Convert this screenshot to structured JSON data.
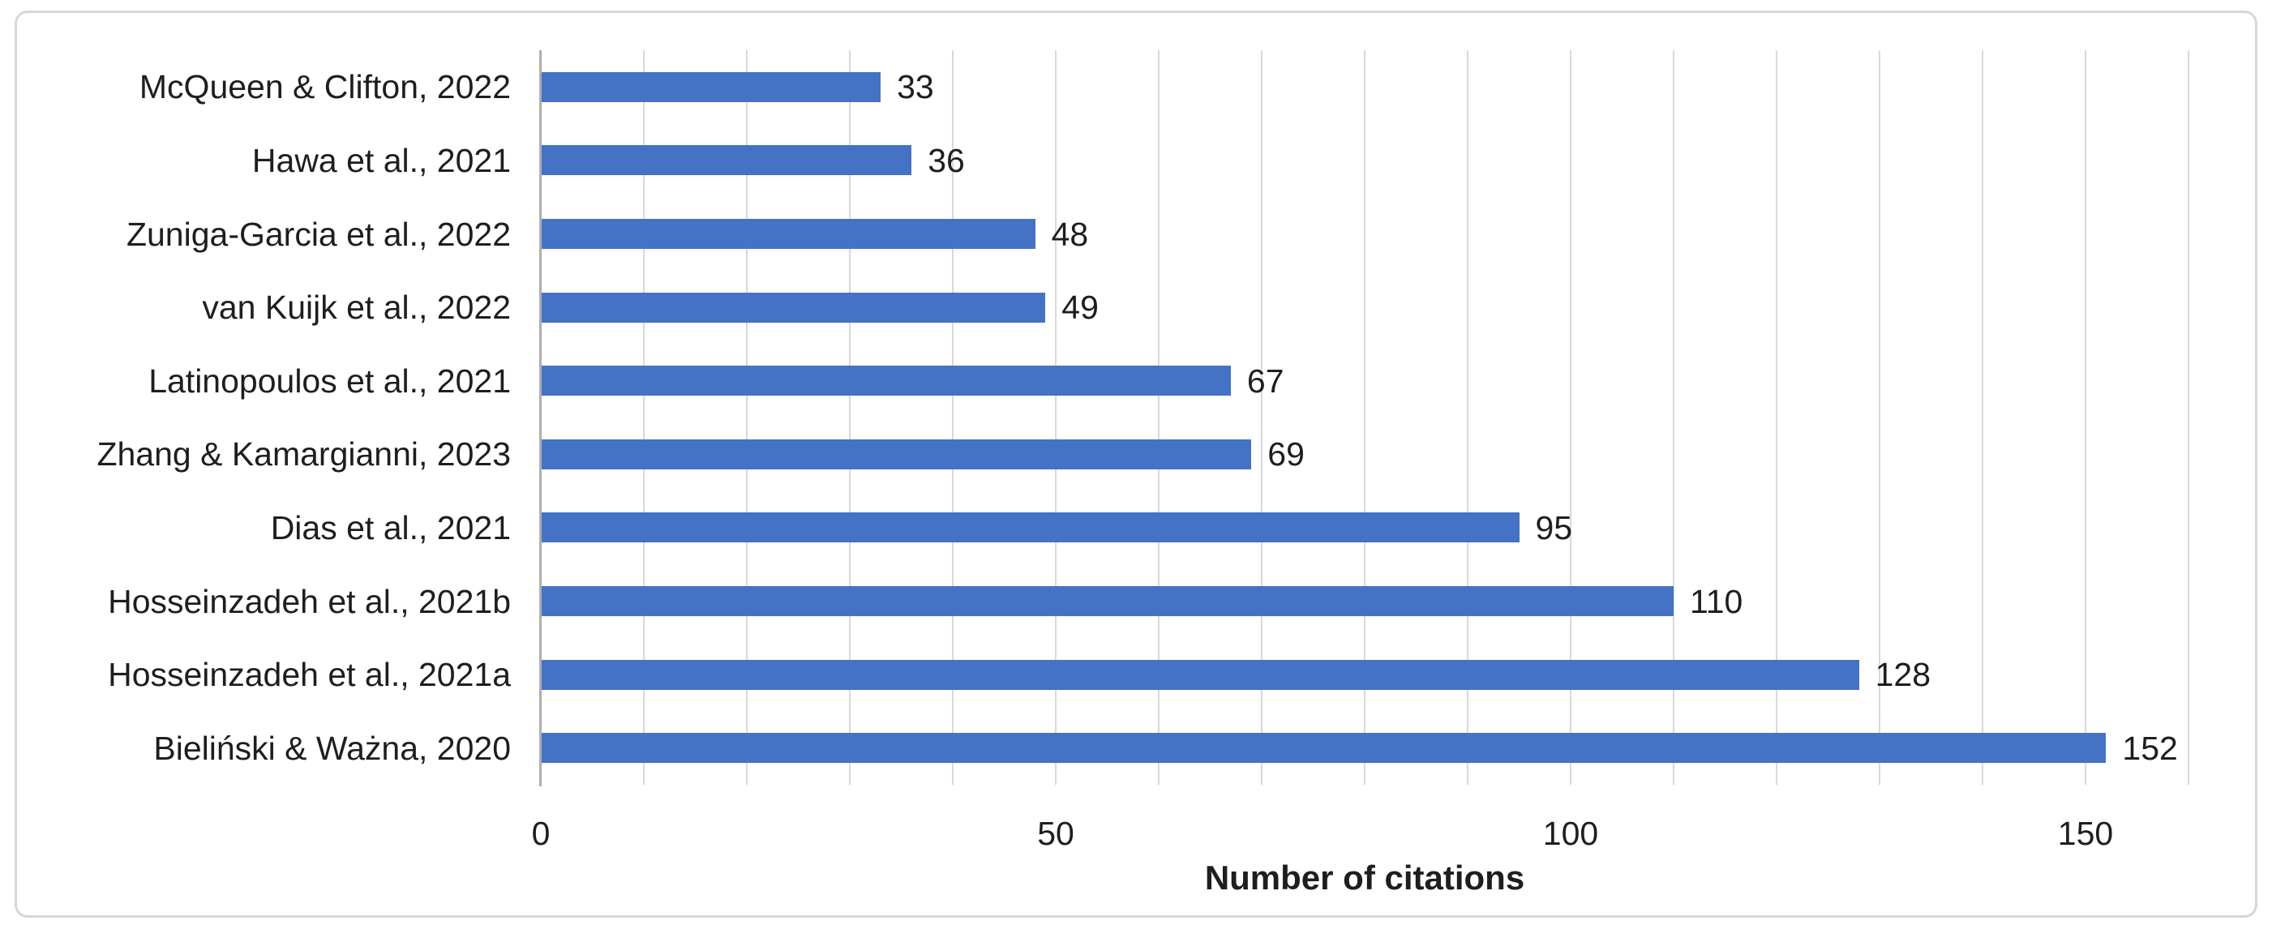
{
  "chart_data": {
    "type": "bar",
    "orientation": "horizontal",
    "title": "",
    "xlabel": "Number of citations",
    "ylabel": "",
    "categories": [
      "McQueen & Clifton, 2022",
      "Hawa et al., 2021",
      "Zuniga-Garcia et al., 2022",
      "van Kuijk et al., 2022",
      "Latinopoulos et al., 2021",
      "Zhang & Kamargianni, 2023",
      "Dias et al., 2021",
      "Hosseinzadeh et al., 2021b",
      "Hosseinzadeh et al., 2021a",
      "Bieliński & Ważna, 2020"
    ],
    "values": [
      33,
      36,
      48,
      49,
      67,
      69,
      95,
      110,
      128,
      152
    ],
    "xlim": [
      0,
      160
    ],
    "xticks": [
      0,
      50,
      100,
      150
    ],
    "minor_gridline_unit": 10,
    "grid": "vertical-minor-gridlines",
    "legend": "none",
    "data_labels": "outside-end",
    "colors": {
      "bar": "#4472C4",
      "gridline": "#D9D9D9",
      "axis_line": "#AEAEAE",
      "text": "#1E1E1E",
      "border": "#D7D7D7",
      "background": "#FFFFFF"
    }
  }
}
